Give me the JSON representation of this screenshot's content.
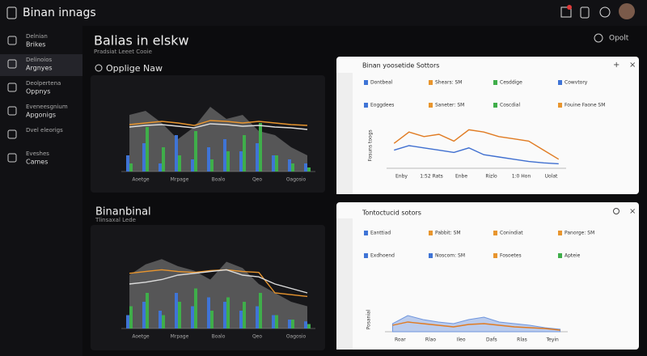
{
  "app": {
    "title": "Binan innags"
  },
  "sidebar": [
    {
      "label": "Delnian",
      "sub": "Brikes"
    },
    {
      "label": "Delinoios",
      "sub": "Argnyes"
    },
    {
      "label": "Deolpertena",
      "sub": "Oppnys"
    },
    {
      "label": "Eveneesgnium",
      "sub": "Apgonigs"
    },
    {
      "label": "Dvel eleorigs"
    },
    {
      "label": "Eveshes",
      "sub": "Cames"
    }
  ],
  "main": {
    "title": "Balias in elskw",
    "subtitle": "Pradsiat Leeet Cooie",
    "menu": "Opolt",
    "search": "Opplige Naw",
    "section2": "Binanbinal",
    "section2_sub": "Tlinsaxal Lede"
  },
  "charts": [
    {
      "type": "combo",
      "ylim": [
        0,
        100
      ],
      "x_labels": [
        "Aoetge",
        "Mrpage",
        "Boalo",
        "Qeo",
        "Oagosio"
      ],
      "series": [
        {
          "kind": "area",
          "color": "#8a8a8a",
          "values": [
            70,
            75,
            60,
            40,
            55,
            80,
            65,
            70,
            50,
            45,
            30,
            20
          ]
        },
        {
          "kind": "bar",
          "color": "#3f74d6",
          "values": [
            20,
            35,
            10,
            45,
            15,
            30,
            40,
            25,
            35,
            20,
            15,
            10
          ]
        },
        {
          "kind": "bar",
          "color": "#3fae4a",
          "values": [
            10,
            55,
            30,
            20,
            50,
            15,
            25,
            45,
            60,
            20,
            10,
            5
          ]
        },
        {
          "kind": "line",
          "color": "#e8952e",
          "values": [
            58,
            60,
            62,
            60,
            57,
            63,
            62,
            60,
            62,
            60,
            58,
            57
          ]
        },
        {
          "kind": "line",
          "color": "#dddddd",
          "values": [
            55,
            57,
            58,
            56,
            54,
            59,
            58,
            56,
            57,
            55,
            54,
            52
          ]
        }
      ]
    },
    {
      "type": "line",
      "title": "Binan yoosetide Sottors",
      "ylim": [
        0,
        100
      ],
      "y_label": "Fosuns toogs",
      "x_labels": [
        "Enby",
        "1:52 Rats",
        "Enbe",
        "Rizlo",
        "1:0 Hon",
        "Uolat"
      ],
      "legend": [
        {
          "label": "Dontbeal",
          "color": "#3f74d6"
        },
        {
          "label": "Shears: SM",
          "color": "#e8952e"
        },
        {
          "label": "Cesddige",
          "color": "#3fae4a"
        },
        {
          "label": "Cowvtory",
          "color": "#3f74d6"
        },
        {
          "label": "Eoggdees",
          "color": "#3f74d6"
        },
        {
          "label": "Saneter: SM",
          "color": "#e8952e"
        },
        {
          "label": "Coscdial",
          "color": "#3fae4a"
        },
        {
          "label": "Fouine Faone SM",
          "color": "#e8952e"
        }
      ],
      "series": [
        {
          "kind": "line",
          "color": "#e07b22",
          "values": [
            55,
            80,
            70,
            75,
            60,
            85,
            80,
            70,
            65,
            60,
            40,
            20
          ]
        },
        {
          "kind": "line",
          "color": "#3f6fd0",
          "values": [
            40,
            50,
            45,
            40,
            35,
            45,
            30,
            25,
            20,
            15,
            12,
            10
          ]
        }
      ]
    },
    {
      "type": "combo",
      "ylim": [
        0,
        100
      ],
      "x_labels": [
        "Aoetge",
        "Mrpage",
        "Boalo",
        "Qeo",
        "Oagosio"
      ],
      "series": [
        {
          "kind": "area",
          "color": "#8a8a8a",
          "values": [
            60,
            72,
            78,
            70,
            65,
            55,
            75,
            68,
            50,
            40,
            30,
            25
          ]
        },
        {
          "kind": "bar",
          "color": "#3f74d6",
          "values": [
            15,
            30,
            20,
            40,
            25,
            35,
            30,
            20,
            25,
            15,
            10,
            8
          ]
        },
        {
          "kind": "bar",
          "color": "#3fae4a",
          "values": [
            25,
            40,
            15,
            30,
            45,
            20,
            35,
            30,
            40,
            15,
            10,
            5
          ]
        },
        {
          "kind": "line",
          "color": "#e8952e",
          "values": [
            62,
            64,
            66,
            64,
            63,
            65,
            66,
            64,
            63,
            40,
            38,
            36
          ]
        },
        {
          "kind": "line",
          "color": "#dddddd",
          "values": [
            50,
            52,
            55,
            60,
            62,
            64,
            66,
            60,
            58,
            50,
            45,
            40
          ]
        }
      ]
    },
    {
      "type": "area",
      "title": "Tontoctucid sotors",
      "ylim": [
        0,
        30
      ],
      "y_label": "Posanial",
      "x_labels": [
        "Roar",
        "Rlao",
        "Ileo",
        "Dafs",
        "Rlas",
        "Teyin"
      ],
      "legend": [
        {
          "label": "Eanttiad",
          "color": "#3f74d6"
        },
        {
          "label": "Pabbit: SM",
          "color": "#e8952e"
        },
        {
          "label": "Conindiat",
          "color": "#e8952e"
        },
        {
          "label": "Panorge: SM",
          "color": "#e8952e"
        },
        {
          "label": "Exdhoend",
          "color": "#3f74d6"
        },
        {
          "label": "Noscom: SM",
          "color": "#3f74d6"
        },
        {
          "label": "Fosoetes",
          "color": "#e8952e"
        },
        {
          "label": "Apteie",
          "color": "#3fae4a"
        }
      ],
      "series": [
        {
          "kind": "area",
          "color": "#6f95dd",
          "values": [
            10,
            20,
            15,
            12,
            10,
            15,
            18,
            12,
            10,
            8,
            5,
            3
          ]
        },
        {
          "kind": "line",
          "color": "#e07b22",
          "values": [
            8,
            12,
            10,
            8,
            6,
            9,
            10,
            8,
            6,
            5,
            4,
            2
          ]
        }
      ]
    }
  ]
}
